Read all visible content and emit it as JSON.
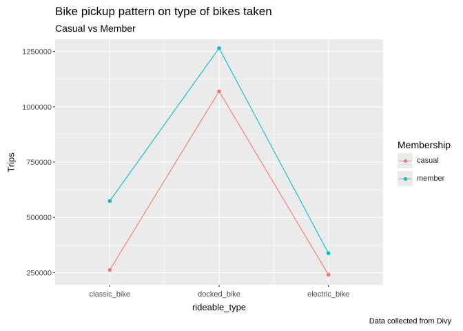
{
  "chart_data": {
    "type": "line",
    "title": "Bike pickup pattern on type of bikes taken",
    "subtitle": "Casual vs Member",
    "caption": "Data collected from Divy",
    "xlabel": "rideable_type",
    "ylabel": "Trips",
    "categories": [
      "classic_bike",
      "docked_bike",
      "electric_bike"
    ],
    "ylim": [
      195000,
      1305000
    ],
    "yticks": [
      250000,
      500000,
      750000,
      1000000,
      1250000
    ],
    "ytick_labels": [
      "250000",
      "500000",
      "750000",
      "1000000",
      "1250000"
    ],
    "grid": true,
    "legend": {
      "title": "Membership",
      "position": "right"
    },
    "series": [
      {
        "name": "casual",
        "color": "#F8766D",
        "values": [
          262000,
          1070000,
          241000
        ]
      },
      {
        "name": "member",
        "color": "#00BFC4",
        "values": [
          574000,
          1265000,
          338000
        ]
      }
    ]
  }
}
